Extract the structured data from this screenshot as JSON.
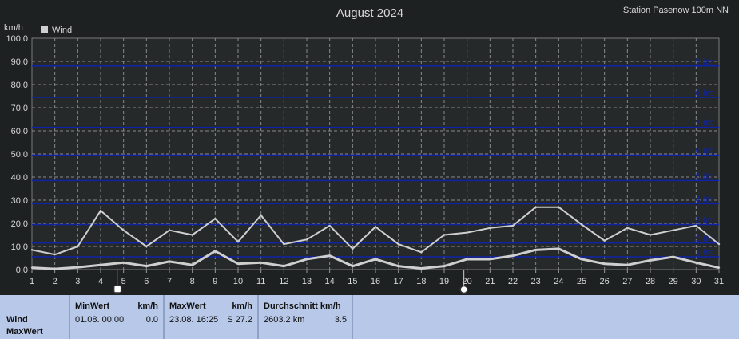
{
  "header": {
    "title": "August 2024",
    "station": "Station Pasenow 100m NN"
  },
  "legend": {
    "label": "Wind",
    "color": "#cfcfcf"
  },
  "chart_data": {
    "type": "line",
    "title": "August 2024",
    "ylabel": "km/h",
    "xlabel": "",
    "ylim": [
      0,
      100
    ],
    "y_ticks": [
      "0.0",
      "10.0",
      "20.0",
      "30.0",
      "40.0",
      "50.0",
      "60.0",
      "70.0",
      "80.0",
      "90.0",
      "100.0"
    ],
    "x": [
      1,
      2,
      3,
      4,
      5,
      6,
      7,
      8,
      9,
      10,
      11,
      12,
      13,
      14,
      15,
      16,
      17,
      18,
      19,
      20,
      21,
      22,
      23,
      24,
      25,
      26,
      27,
      28,
      29,
      30,
      31
    ],
    "series": [
      {
        "name": "Wind",
        "role": "max",
        "values": [
          8.5,
          6.5,
          10,
          25.5,
          17,
          10,
          17,
          15,
          22,
          12,
          23.5,
          11,
          13,
          19,
          9,
          18.5,
          11,
          7.5,
          15,
          16,
          18,
          19,
          27,
          27,
          19.5,
          12.5,
          18,
          15,
          17,
          19,
          11
        ],
        "color": "#cfcfcf"
      },
      {
        "name": "Wind",
        "role": "avg",
        "values": [
          0.8,
          0.3,
          1,
          2,
          3,
          1.5,
          3.5,
          2,
          8,
          2.5,
          3,
          1.5,
          4.5,
          6,
          1.5,
          4.5,
          1.5,
          0.5,
          1.5,
          4.5,
          4.5,
          6,
          8.5,
          9,
          4.5,
          2.5,
          2,
          4,
          5.5,
          3,
          0.8
        ],
        "color": "#cfcfcf"
      }
    ],
    "beaufort": {
      "values": [
        5.5,
        11.5,
        19.5,
        28.5,
        38.5,
        49.5,
        61.5,
        74.5,
        88
      ],
      "labels": [
        "1 bft",
        "2 bft",
        "3 bft",
        "4 bft",
        "5 bft",
        "6 bft",
        "7 bft",
        "8 bft",
        "9 bft"
      ],
      "color": "#0f23a8"
    },
    "grid": true,
    "markers": {
      "square_day": 5,
      "circle_day": 20
    }
  },
  "summary": {
    "row_label_1": "Wind",
    "row_label_2": "MaxWert",
    "min": {
      "title": "MinWert",
      "unit": "km/h",
      "datetime": "01.08.  00:00",
      "value": "0.0"
    },
    "max": {
      "title": "MaxWert",
      "unit": "km/h",
      "datetime": "23.08.  16:25",
      "value": "S 27.2"
    },
    "avg": {
      "title": "Durchschnitt km/h",
      "distance": "2603.2 km",
      "value": "3.5"
    }
  }
}
